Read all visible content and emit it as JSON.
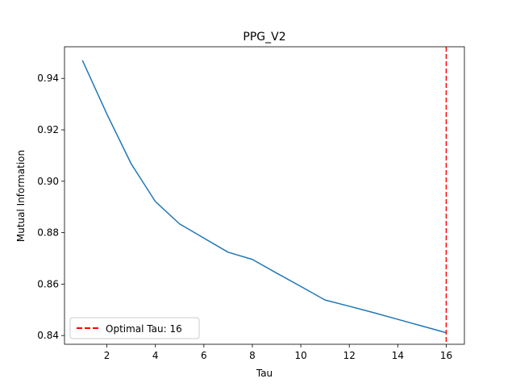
{
  "chart_data": {
    "type": "line",
    "title": "PPG_V2",
    "xlabel": "Tau",
    "ylabel": "Mutual Information",
    "xlim": [
      0.25,
      16.75
    ],
    "ylim": [
      0.8366,
      0.9523
    ],
    "xticks": [
      2,
      4,
      6,
      8,
      10,
      12,
      14,
      16
    ],
    "yticks": [
      0.84,
      0.86,
      0.88,
      0.9,
      0.92,
      0.94
    ],
    "tick_labels_x": [
      "2",
      "4",
      "6",
      "8",
      "10",
      "12",
      "14",
      "16"
    ],
    "tick_labels_y": [
      "0.84",
      "0.86",
      "0.88",
      "0.90",
      "0.92",
      "0.94"
    ],
    "grid": false,
    "series": [
      {
        "color": "#1f77b4",
        "x": [
          1,
          2,
          3,
          4,
          5,
          6,
          7,
          8,
          9,
          10,
          11,
          12,
          13,
          14,
          15,
          16
        ],
        "y": [
          0.9468,
          0.9261,
          0.9068,
          0.8921,
          0.8834,
          0.8779,
          0.8724,
          0.8696,
          0.8643,
          0.8591,
          0.8538,
          0.8514,
          0.8489,
          0.8463,
          0.8437,
          0.8411
        ]
      }
    ],
    "reference_line": {
      "orientation": "vertical",
      "x": 16,
      "color": "#ff0000",
      "style": "dashed",
      "legend_label": "Optimal Tau: 16"
    },
    "legend_position": "lower-left",
    "spine_color": "#000000"
  }
}
